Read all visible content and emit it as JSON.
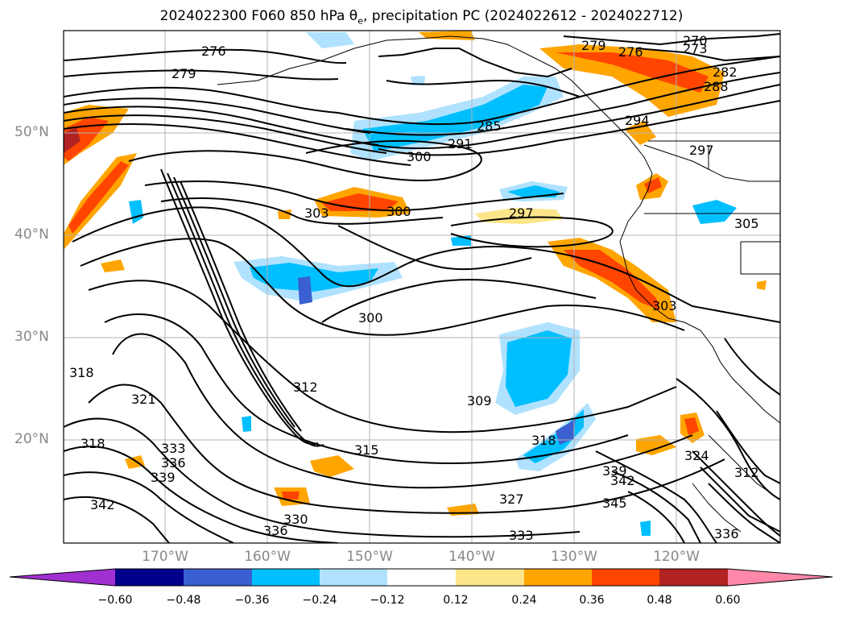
{
  "title": {
    "prefix": "2024022300 F060 850 hPa θ",
    "sub": "e",
    "suffix": ", precipitation PC (2024022612 - 2024022712)"
  },
  "map_axes": {
    "lat_labels": [
      "50°N",
      "40°N",
      "30°N",
      "20°N"
    ],
    "lon_labels": [
      "170°W",
      "160°W",
      "150°W",
      "140°W",
      "130°W",
      "120°W"
    ]
  },
  "contour_labels": [
    "276",
    "279",
    "279",
    "276",
    "270",
    "273",
    "282",
    "288",
    "294",
    "285",
    "291",
    "300",
    "297",
    "303",
    "300",
    "297",
    "305",
    "300",
    "303",
    "318",
    "321",
    "318",
    "312",
    "309",
    "315",
    "318",
    "324",
    "312",
    "333",
    "336",
    "339",
    "342",
    "330",
    "327",
    "339",
    "342",
    "345",
    "333",
    "336",
    "336"
  ],
  "colorbar": {
    "ticks": [
      "−0.60",
      "−0.48",
      "−0.36",
      "−0.24",
      "−0.12",
      "0.12",
      "0.24",
      "0.36",
      "0.48",
      "0.60"
    ],
    "colors": [
      "#a030d0",
      "#00008b",
      "#3a5fd0",
      "#00bfff",
      "#b0e2ff",
      "#ffffff",
      "#fde68a",
      "#ffa500",
      "#ff4500",
      "#b22222",
      "#ff88aa"
    ]
  }
}
